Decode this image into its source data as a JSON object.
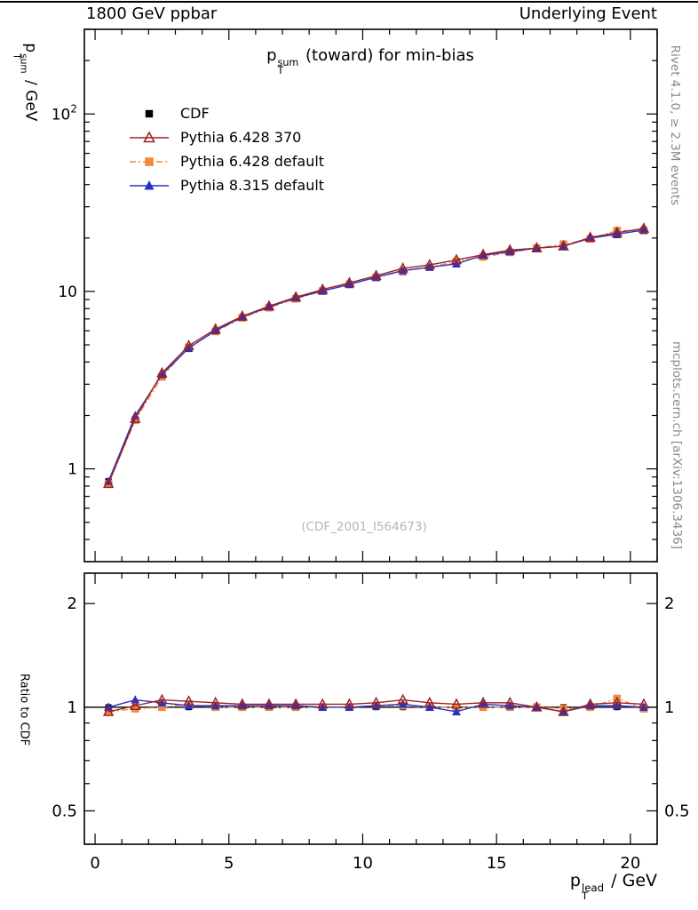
{
  "header": {
    "left": "1800 GeV ppbar",
    "right": "Underlying Event"
  },
  "title": {
    "base": "p",
    "sub": "T",
    "sup": "sum",
    "rest": " (toward) for min-bias"
  },
  "axes": {
    "y_main": {
      "base": "p",
      "sub": "T",
      "sup": "sum",
      "rest": " / GeV"
    },
    "y_ratio": "Ratio to CDF",
    "x": {
      "base": "p",
      "sub": "T",
      "sup": "lead",
      "rest": " / GeV"
    }
  },
  "side_notes": {
    "top": "Rivet 4.1.0, ≥ 2.3M events",
    "bottom": "mcplots.cern.ch [arXiv:1306.3436]"
  },
  "watermark": "(CDF_2001_I564673)",
  "chart_data": {
    "type": "line",
    "title": "pT^sum (toward) for min-bias",
    "xlabel": "pT^lead / GeV",
    "ylabel_main": "pT^sum / GeV",
    "ylabel_ratio": "Ratio to CDF",
    "x_range": [
      -0.4,
      21.0
    ],
    "y_main_range": [
      0.3,
      300
    ],
    "y_main_scale": "log",
    "y_ratio_range": [
      0.4,
      2.45
    ],
    "y_ratio_scale": "log",
    "x_major_ticks": [
      0,
      5,
      10,
      15,
      20
    ],
    "y_main_tick_labels": [
      "1",
      "10",
      "10^2"
    ],
    "y_ratio_tick_labels": [
      "0.5",
      "1",
      "2"
    ],
    "legend_position": "top-left",
    "x": [
      0.5,
      1.5,
      2.5,
      3.5,
      4.5,
      5.5,
      6.5,
      7.5,
      8.5,
      9.5,
      10.5,
      11.5,
      12.5,
      13.5,
      14.5,
      15.5,
      16.5,
      17.5,
      18.5,
      19.5,
      20.5
    ],
    "series": [
      {
        "key": "cdf",
        "label": "CDF",
        "color": "#000000",
        "marker": "square-filled",
        "line": null,
        "values": [
          0.85,
          1.9,
          3.3,
          4.75,
          5.95,
          7.1,
          8.1,
          9.1,
          10.05,
          10.95,
          11.9,
          12.85,
          13.7,
          14.75,
          15.65,
          16.6,
          17.55,
          18.55,
          19.75,
          20.8,
          22.2
        ],
        "ratio": [
          1,
          1,
          1,
          1,
          1,
          1,
          1,
          1,
          1,
          1,
          1,
          1,
          1,
          1,
          1,
          1,
          1,
          1,
          1,
          1,
          1
        ]
      },
      {
        "key": "py6_370",
        "label": "Pythia 6.428 370",
        "color": "#a02020",
        "marker": "triangle-open",
        "line": "solid",
        "ratio": [
          0.97,
          1.01,
          1.05,
          1.04,
          1.03,
          1.02,
          1.02,
          1.02,
          1.02,
          1.02,
          1.03,
          1.05,
          1.03,
          1.02,
          1.03,
          1.03,
          1.0,
          0.97,
          1.02,
          1.03,
          1.02
        ]
      },
      {
        "key": "py6_def",
        "label": "Pythia 6.428 default",
        "color": "#f08a3c",
        "marker": "square-filled",
        "line": "dashdot",
        "ratio": [
          0.97,
          0.99,
          1.0,
          1.02,
          1.0,
          1.0,
          1.0,
          1.0,
          1.0,
          1.0,
          1.01,
          1.01,
          1.0,
          1.0,
          1.0,
          1.0,
          1.0,
          0.99,
          1.0,
          1.06,
          0.99
        ]
      },
      {
        "key": "py8_def",
        "label": "Pythia 8.315 default",
        "color": "#2233cc",
        "marker": "triangle-filled",
        "line": "solid",
        "ratio": [
          1.0,
          1.05,
          1.03,
          1.01,
          1.01,
          1.01,
          1.01,
          1.01,
          1.0,
          1.0,
          1.01,
          1.02,
          1.0,
          0.97,
          1.02,
          1.01,
          1.0,
          0.97,
          1.01,
          1.01,
          1.0
        ]
      }
    ]
  }
}
